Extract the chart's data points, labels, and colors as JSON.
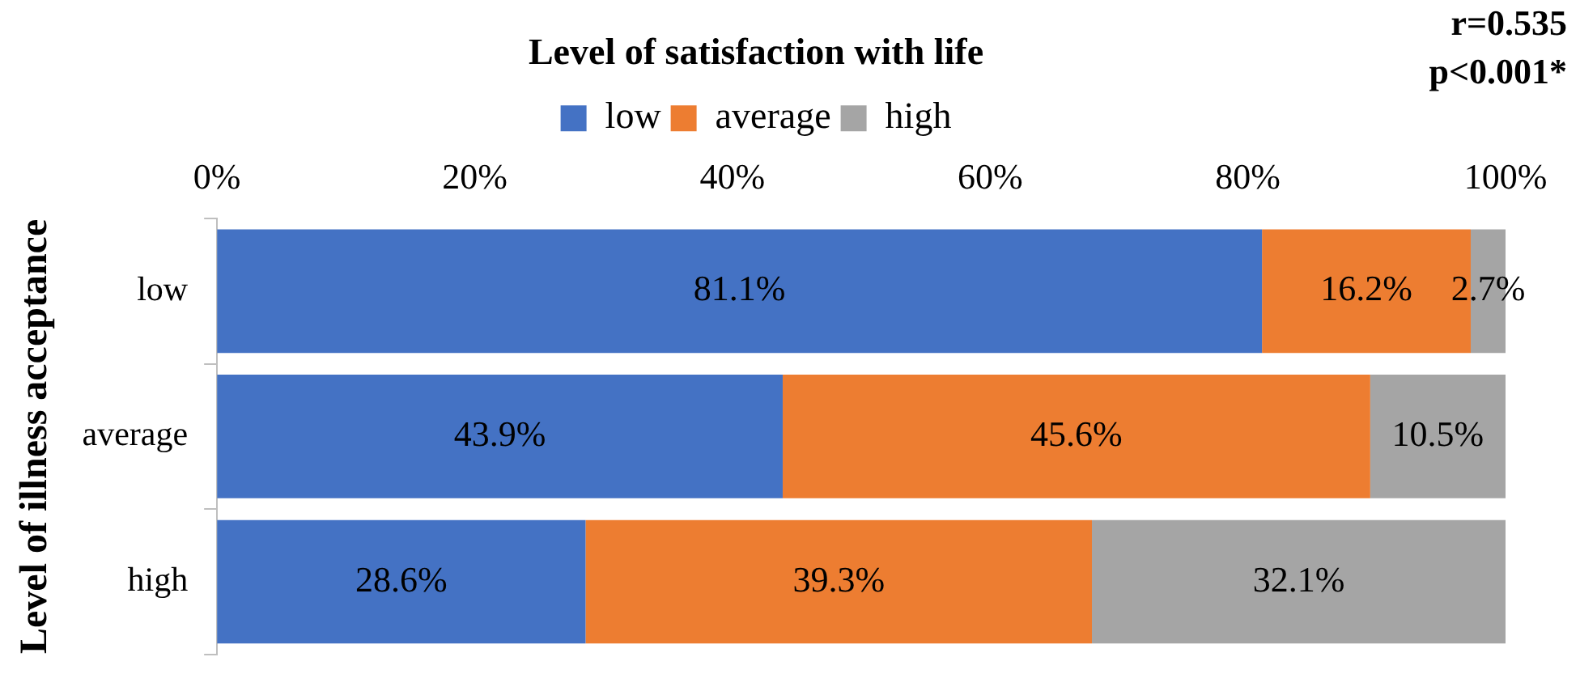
{
  "chart_data": {
    "type": "bar",
    "orientation": "horizontal",
    "stacked": true,
    "title": "Level of satisfaction with life",
    "ylabel": "Level of illness acceptance",
    "annotations": [
      "r=0.535",
      "p<0.001*"
    ],
    "categories": [
      "low",
      "average",
      "high"
    ],
    "series": [
      {
        "name": "low",
        "color": "#4472c4",
        "values": [
          81.1,
          43.9,
          28.6
        ],
        "value_labels": [
          "81.1%",
          "43.9%",
          "28.6%"
        ]
      },
      {
        "name": "average",
        "color": "#ed7d31",
        "values": [
          16.2,
          45.6,
          39.3
        ],
        "value_labels": [
          "16.2%",
          "45.6%",
          "39.3%"
        ]
      },
      {
        "name": "high",
        "color": "#a5a5a5",
        "values": [
          2.7,
          10.5,
          32.1
        ],
        "value_labels": [
          "2.7%",
          "10.5%",
          "32.1%"
        ]
      }
    ],
    "xlim": [
      0,
      100
    ],
    "xticks": [
      {
        "value": 0,
        "label": "0%"
      },
      {
        "value": 20,
        "label": "20%"
      },
      {
        "value": 40,
        "label": "40%"
      },
      {
        "value": 60,
        "label": "60%"
      },
      {
        "value": 80,
        "label": "80%"
      },
      {
        "value": 100,
        "label": "100%"
      }
    ],
    "legend": "top"
  }
}
